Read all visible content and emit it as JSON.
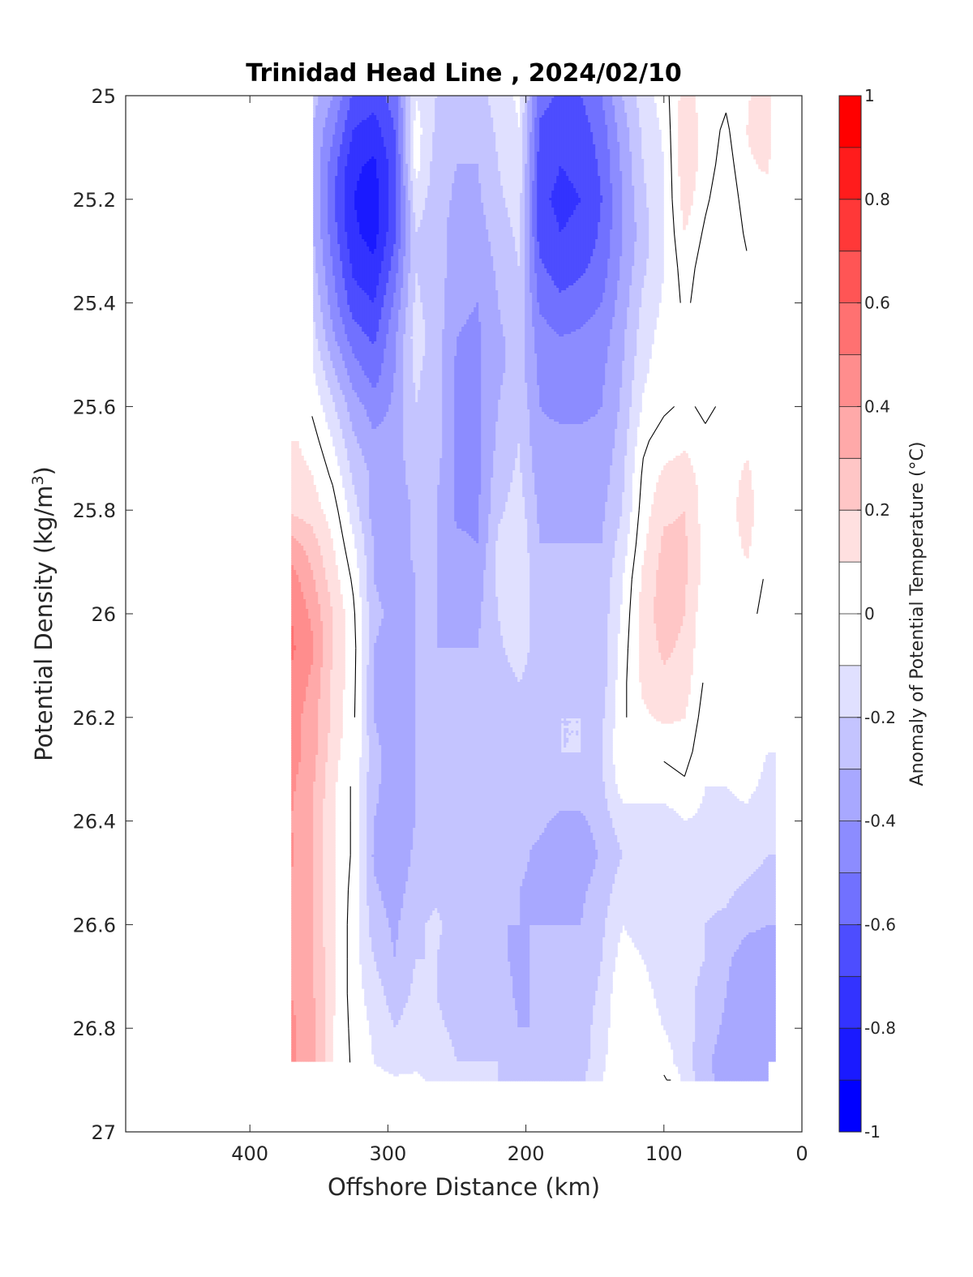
{
  "chart_data": {
    "type": "heatmap",
    "title": "Trinidad Head Line , 2024/02/10",
    "xlabel": "Offshore Distance (km)",
    "ylabel": "Potential Density (kg/m",
    "ylabel_sup": "3",
    "ylabel_close": ")",
    "colorbar_label": "Anomaly of Potential Temperature (°C)",
    "xlim": [
      490,
      0
    ],
    "ylim": [
      25,
      27
    ],
    "x_reversed": true,
    "y_reversed": true,
    "x_ticks": [
      400,
      300,
      200,
      100,
      0
    ],
    "x_tick_labels": [
      "400",
      "300",
      "200",
      "100",
      "0"
    ],
    "y_ticks": [
      25,
      25.2,
      25.4,
      25.6,
      25.8,
      26,
      26.2,
      26.4,
      26.6,
      26.8,
      27
    ],
    "y_tick_labels": [
      "25",
      "25.2",
      "25.4",
      "25.6",
      "25.8",
      "26",
      "26.2",
      "26.4",
      "26.6",
      "26.8",
      "27"
    ],
    "clim": [
      -1,
      1
    ],
    "colorbar_ticks": [
      1,
      0.8,
      0.6,
      0.4,
      0.2,
      0,
      -0.2,
      -0.4,
      -0.6,
      -0.8,
      -1
    ],
    "colorbar_tick_labels": [
      "1",
      "0.8",
      "0.6",
      "0.4",
      "0.2",
      "0",
      "-0.2",
      "-0.4",
      "-0.6",
      "-0.8",
      "-1"
    ],
    "colormap_levels": [
      "#0000ff",
      "#1a1aff",
      "#3333ff",
      "#4d4dff",
      "#7171ff",
      "#8c8cff",
      "#a8a8ff",
      "#c4c4ff",
      "#e0e0ff",
      "#ffffff",
      "#ffffff",
      "#ffe0e0",
      "#ffc6c6",
      "#ffa9a9",
      "#ff8d8d",
      "#ff7171",
      "#ff5555",
      "#ff3838",
      "#ff1c1c",
      "#ff0000"
    ],
    "grid": false,
    "contour_line_level": 0,
    "columns": [
      {
        "x": 370,
        "values": [
          null,
          null,
          null,
          null,
          null,
          null,
          null,
          null,
          null,
          null,
          0.12,
          0.15,
          0.18,
          0.35,
          0.45,
          0.5,
          0.52,
          0.48,
          0.45,
          0.45,
          0.42,
          0.4,
          0.42,
          0.38,
          0.38,
          0.4,
          0.4,
          0.42,
          0.42,
          null,
          null
        ]
      },
      {
        "x": 355,
        "values": [
          -0.25,
          -0.3,
          -0.3,
          -0.3,
          -0.28,
          -0.25,
          -0.2,
          -0.15,
          -0.08,
          -0.02,
          0.05,
          0.1,
          0.15,
          0.25,
          0.32,
          0.38,
          0.42,
          0.38,
          0.35,
          0.35,
          0.32,
          0.3,
          0.3,
          0.3,
          0.3,
          0.32,
          0.32,
          0.35,
          0.35,
          null,
          null
        ]
      },
      {
        "x": 340,
        "values": [
          -0.4,
          -0.48,
          -0.55,
          -0.58,
          -0.55,
          -0.5,
          -0.45,
          -0.38,
          -0.28,
          -0.18,
          -0.1,
          -0.02,
          0.05,
          0.1,
          0.15,
          0.2,
          0.2,
          0.18,
          0.18,
          0.15,
          0.12,
          0.12,
          0.12,
          0.12,
          0.12,
          0.12,
          0.12,
          0.1,
          0.1,
          0.02,
          0.0
        ]
      },
      {
        "x": 325,
        "values": [
          -0.62,
          -0.7,
          -0.78,
          -0.8,
          -0.78,
          -0.72,
          -0.65,
          -0.55,
          -0.45,
          -0.35,
          -0.28,
          -0.22,
          -0.15,
          -0.08,
          -0.02,
          0.02,
          0.04,
          0.03,
          0.02,
          0.0,
          -0.02,
          -0.02,
          -0.02,
          -0.04,
          -0.05,
          -0.05,
          -0.05,
          -0.03,
          -0.02,
          0.0,
          0.0
        ]
      },
      {
        "x": 310,
        "values": [
          -0.65,
          -0.75,
          -0.82,
          -0.85,
          -0.84,
          -0.78,
          -0.7,
          -0.62,
          -0.55,
          -0.45,
          -0.38,
          -0.32,
          -0.35,
          -0.3,
          -0.3,
          -0.28,
          -0.3,
          -0.3,
          -0.3,
          -0.28,
          -0.28,
          -0.3,
          -0.32,
          -0.28,
          -0.25,
          -0.2,
          -0.15,
          -0.12,
          -0.1,
          -0.05,
          0.0
        ]
      },
      {
        "x": 295,
        "values": [
          -0.55,
          -0.6,
          -0.65,
          -0.65,
          -0.62,
          -0.55,
          -0.48,
          -0.42,
          -0.4,
          -0.38,
          -0.36,
          -0.35,
          -0.38,
          -0.35,
          -0.35,
          -0.32,
          -0.35,
          -0.35,
          -0.35,
          -0.34,
          -0.35,
          -0.35,
          -0.38,
          -0.35,
          -0.32,
          -0.3,
          -0.25,
          -0.2,
          -0.15,
          -0.08,
          -0.05
        ]
      },
      {
        "x": 280,
        "values": [
          -0.1,
          -0.05,
          -0.05,
          -0.15,
          -0.2,
          -0.2,
          -0.18,
          -0.15,
          -0.18,
          -0.2,
          -0.22,
          -0.25,
          -0.28,
          -0.28,
          -0.3,
          -0.3,
          -0.3,
          -0.3,
          -0.3,
          -0.3,
          -0.3,
          -0.3,
          -0.28,
          -0.25,
          -0.22,
          -0.2,
          -0.18,
          -0.15,
          -0.12,
          -0.08,
          -0.05
        ]
      },
      {
        "x": 265,
        "values": [
          -0.2,
          -0.22,
          -0.25,
          -0.25,
          -0.25,
          -0.25,
          -0.25,
          -0.25,
          -0.25,
          -0.25,
          -0.25,
          -0.28,
          -0.3,
          -0.3,
          -0.3,
          -0.3,
          -0.3,
          -0.3,
          -0.28,
          -0.28,
          -0.28,
          -0.28,
          -0.28,
          -0.22,
          -0.18,
          -0.2,
          -0.2,
          -0.18,
          -0.15,
          -0.12,
          -0.08
        ]
      },
      {
        "x": 250,
        "values": [
          -0.25,
          -0.28,
          -0.3,
          -0.32,
          -0.35,
          -0.35,
          -0.38,
          -0.4,
          -0.42,
          -0.42,
          -0.42,
          -0.42,
          -0.42,
          -0.38,
          -0.35,
          -0.32,
          -0.3,
          -0.3,
          -0.28,
          -0.28,
          -0.28,
          -0.3,
          -0.3,
          -0.28,
          -0.25,
          -0.25,
          -0.25,
          -0.22,
          -0.2,
          -0.15,
          -0.1
        ]
      },
      {
        "x": 235,
        "values": [
          -0.25,
          -0.28,
          -0.3,
          -0.32,
          -0.35,
          -0.38,
          -0.4,
          -0.42,
          -0.42,
          -0.42,
          -0.42,
          -0.42,
          -0.42,
          -0.4,
          -0.35,
          -0.32,
          -0.3,
          -0.3,
          -0.3,
          -0.28,
          -0.28,
          -0.28,
          -0.3,
          -0.3,
          -0.3,
          -0.28,
          -0.25,
          -0.22,
          -0.2,
          -0.15,
          -0.1
        ]
      },
      {
        "x": 220,
        "values": [
          -0.15,
          -0.18,
          -0.2,
          -0.22,
          -0.25,
          -0.28,
          -0.3,
          -0.32,
          -0.32,
          -0.3,
          -0.28,
          -0.25,
          -0.22,
          -0.18,
          -0.18,
          -0.2,
          -0.22,
          -0.25,
          -0.28,
          -0.28,
          -0.3,
          -0.3,
          -0.3,
          -0.3,
          -0.3,
          -0.28,
          -0.25,
          -0.22,
          -0.2,
          -0.2,
          -0.15
        ]
      },
      {
        "x": 205,
        "values": [
          -0.08,
          -0.1,
          -0.12,
          -0.15,
          -0.18,
          -0.2,
          -0.22,
          -0.25,
          -0.25,
          -0.22,
          -0.2,
          -0.18,
          -0.15,
          -0.12,
          -0.12,
          -0.12,
          -0.15,
          -0.2,
          -0.22,
          -0.25,
          -0.28,
          -0.28,
          -0.28,
          -0.3,
          -0.3,
          -0.32,
          -0.32,
          -0.3,
          -0.25,
          -0.22,
          -0.2
        ]
      },
      {
        "x": 190,
        "values": [
          -0.55,
          -0.62,
          -0.65,
          -0.68,
          -0.65,
          -0.58,
          -0.52,
          -0.45,
          -0.42,
          -0.4,
          -0.38,
          -0.35,
          -0.32,
          -0.3,
          -0.28,
          -0.26,
          -0.25,
          -0.25,
          -0.22,
          -0.2,
          -0.22,
          -0.28,
          -0.32,
          -0.32,
          -0.3,
          -0.28,
          -0.28,
          -0.3,
          -0.3,
          -0.28,
          -0.25
        ]
      },
      {
        "x": 175,
        "values": [
          -0.62,
          -0.68,
          -0.7,
          -0.72,
          -0.7,
          -0.65,
          -0.58,
          -0.5,
          -0.45,
          -0.42,
          -0.38,
          -0.35,
          -0.32,
          -0.3,
          -0.28,
          -0.26,
          -0.25,
          -0.22,
          -0.2,
          -0.2,
          -0.25,
          -0.32,
          -0.38,
          -0.32,
          -0.3,
          -0.28,
          -0.28,
          -0.3,
          -0.28,
          -0.25,
          -0.22
        ]
      },
      {
        "x": 160,
        "values": [
          -0.6,
          -0.65,
          -0.68,
          -0.7,
          -0.68,
          -0.62,
          -0.55,
          -0.48,
          -0.45,
          -0.42,
          -0.38,
          -0.35,
          -0.32,
          -0.3,
          -0.28,
          -0.26,
          -0.25,
          -0.22,
          -0.2,
          -0.2,
          -0.25,
          -0.32,
          -0.38,
          -0.32,
          -0.3,
          -0.28,
          -0.25,
          -0.25,
          -0.25,
          -0.22,
          -0.18
        ]
      },
      {
        "x": 145,
        "values": [
          -0.5,
          -0.55,
          -0.58,
          -0.6,
          -0.58,
          -0.55,
          -0.5,
          -0.45,
          -0.42,
          -0.4,
          -0.38,
          -0.35,
          -0.32,
          -0.3,
          -0.28,
          -0.26,
          -0.25,
          -0.25,
          -0.22,
          -0.2,
          -0.22,
          -0.25,
          -0.28,
          -0.25,
          -0.22,
          -0.2,
          -0.18,
          -0.15,
          -0.12,
          -0.1,
          -0.08
        ]
      },
      {
        "x": 130,
        "values": [
          -0.3,
          -0.35,
          -0.38,
          -0.4,
          -0.4,
          -0.38,
          -0.35,
          -0.32,
          -0.3,
          -0.28,
          -0.25,
          -0.22,
          -0.2,
          -0.15,
          -0.1,
          -0.08,
          -0.05,
          -0.03,
          -0.02,
          0.0,
          -0.05,
          -0.15,
          -0.2,
          -0.15,
          -0.1,
          -0.05,
          0.0,
          0.0,
          0.0,
          0.0,
          0.0
        ]
      },
      {
        "x": 115,
        "values": [
          -0.15,
          -0.18,
          -0.2,
          -0.22,
          -0.25,
          -0.22,
          -0.18,
          -0.15,
          -0.12,
          -0.08,
          -0.02,
          0.02,
          0.05,
          0.08,
          0.12,
          0.15,
          0.14,
          0.12,
          0.08,
          0.0,
          -0.05,
          -0.15,
          -0.2,
          -0.18,
          -0.15,
          -0.1,
          -0.05,
          -0.02,
          0.0,
          0.0,
          0.0
        ]
      },
      {
        "x": 100,
        "values": [
          -0.05,
          -0.08,
          -0.1,
          -0.1,
          -0.1,
          -0.1,
          -0.08,
          -0.05,
          -0.03,
          -0.02,
          0.05,
          0.12,
          0.18,
          0.22,
          0.25,
          0.25,
          0.22,
          0.18,
          0.12,
          0.02,
          -0.05,
          -0.15,
          -0.2,
          -0.2,
          -0.2,
          -0.18,
          -0.15,
          -0.1,
          -0.05,
          0.02,
          0.05
        ]
      },
      {
        "x": 85,
        "values": [
          0.15,
          0.18,
          0.18,
          0.15,
          0.1,
          0.05,
          0.02,
          0.0,
          0.0,
          0.02,
          0.08,
          0.15,
          0.2,
          0.22,
          0.22,
          0.2,
          0.18,
          0.15,
          0.1,
          0.05,
          -0.02,
          -0.1,
          -0.15,
          -0.18,
          -0.18,
          -0.18,
          -0.18,
          -0.15,
          -0.15,
          -0.12,
          -0.1
        ]
      },
      {
        "x": 70,
        "values": [
          0.05,
          0.05,
          0.05,
          0.02,
          -0.02,
          -0.05,
          -0.05,
          -0.05,
          -0.05,
          -0.02,
          0.02,
          0.05,
          0.05,
          0.05,
          0.05,
          0.02,
          0.0,
          -0.02,
          -0.05,
          -0.08,
          -0.1,
          -0.12,
          -0.15,
          -0.18,
          -0.2,
          -0.2,
          -0.22,
          -0.25,
          -0.28,
          -0.28,
          -0.28
        ]
      },
      {
        "x": 55,
        "values": [
          0.02,
          -0.02,
          -0.05,
          -0.08,
          -0.1,
          -0.08,
          -0.05,
          -0.02,
          0.0,
          0.02,
          0.03,
          0.05,
          0.05,
          0.04,
          0.03,
          0.02,
          0.0,
          -0.02,
          -0.05,
          -0.08,
          -0.1,
          -0.12,
          -0.15,
          -0.18,
          -0.22,
          -0.28,
          -0.3,
          -0.32,
          -0.35,
          -0.32,
          -0.3
        ]
      },
      {
        "x": 40,
        "values": [
          0.08,
          0.1,
          0.08,
          0.05,
          0.02,
          -0.02,
          -0.05,
          -0.05,
          -0.02,
          0.02,
          0.08,
          0.12,
          0.15,
          0.12,
          0.08,
          0.05,
          0.0,
          -0.05,
          -0.05,
          -0.05,
          -0.08,
          -0.12,
          -0.15,
          -0.22,
          -0.28,
          -0.35,
          -0.38,
          -0.38,
          -0.4,
          -0.38,
          -0.35
        ]
      },
      {
        "x": 25,
        "values": [
          0.2,
          0.18,
          0.12,
          0.05,
          0.0,
          -0.02,
          -0.02,
          -0.02,
          0.0,
          0.0,
          0.02,
          0.02,
          0.0,
          0.0,
          -0.02,
          -0.05,
          -0.05,
          -0.05,
          -0.08,
          -0.1,
          -0.12,
          -0.15,
          -0.2,
          -0.25,
          -0.3,
          -0.35,
          -0.38,
          -0.38,
          -0.38,
          -0.35,
          null
        ]
      },
      {
        "x": 20,
        "values": [
          -0.05,
          0.0,
          0.02,
          0.02,
          0.0,
          -0.02,
          -0.02,
          -0.02,
          0.0,
          0.0,
          0.0,
          0.0,
          0.0,
          0.0,
          0.0,
          -0.02,
          -0.05,
          -0.05,
          -0.08,
          -0.1,
          -0.12,
          -0.15,
          -0.2,
          -0.25,
          -0.3,
          -0.32,
          -0.35,
          -0.35,
          -0.32,
          null,
          null
        ]
      }
    ],
    "sigma_values": [
      25,
      25.066,
      25.133,
      25.2,
      25.266,
      25.333,
      25.4,
      25.466,
      25.533,
      25.6,
      25.666,
      25.733,
      25.8,
      25.866,
      25.933,
      26,
      26.066,
      26.133,
      26.2,
      26.266,
      26.333,
      26.4,
      26.466,
      26.533,
      26.6,
      26.666,
      26.733,
      26.8,
      26.866,
      26.9,
      26.9
    ]
  }
}
